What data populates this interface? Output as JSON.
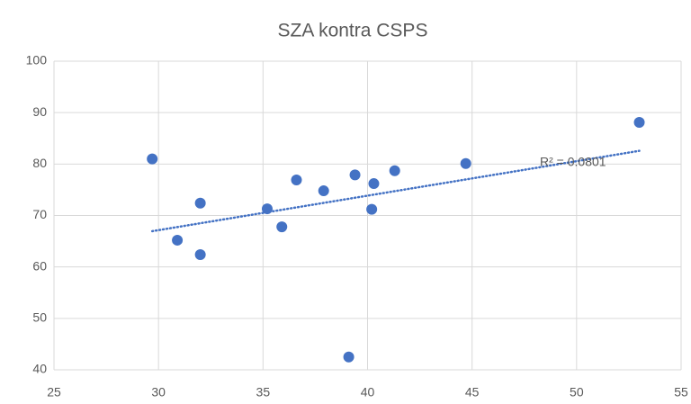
{
  "chart_data": {
    "type": "scatter",
    "title": "SZA kontra CSPS",
    "series": [
      {
        "name": null,
        "color": "#4472c4",
        "x": [
          29.7,
          30.9,
          32.0,
          32.0,
          35.2,
          35.9,
          36.6,
          37.9,
          39.4,
          39.1,
          40.3,
          40.2,
          41.3,
          44.7,
          53.0
        ],
        "values": [
          81,
          65.2,
          72.4,
          62.4,
          71.3,
          67.8,
          76.9,
          74.8,
          77.9,
          42.5,
          76.2,
          71.2,
          78.7,
          80.1,
          88.1
        ]
      }
    ],
    "trendline": {
      "type": "linear",
      "annotation": "R² = 0.0801"
    },
    "xlim": [
      25,
      55
    ],
    "xticks": [
      25,
      30,
      35,
      40,
      45,
      50,
      55
    ],
    "ylim": [
      40,
      100
    ],
    "yticks": [
      40,
      50,
      60,
      70,
      80,
      90,
      100
    ],
    "grid": true
  }
}
